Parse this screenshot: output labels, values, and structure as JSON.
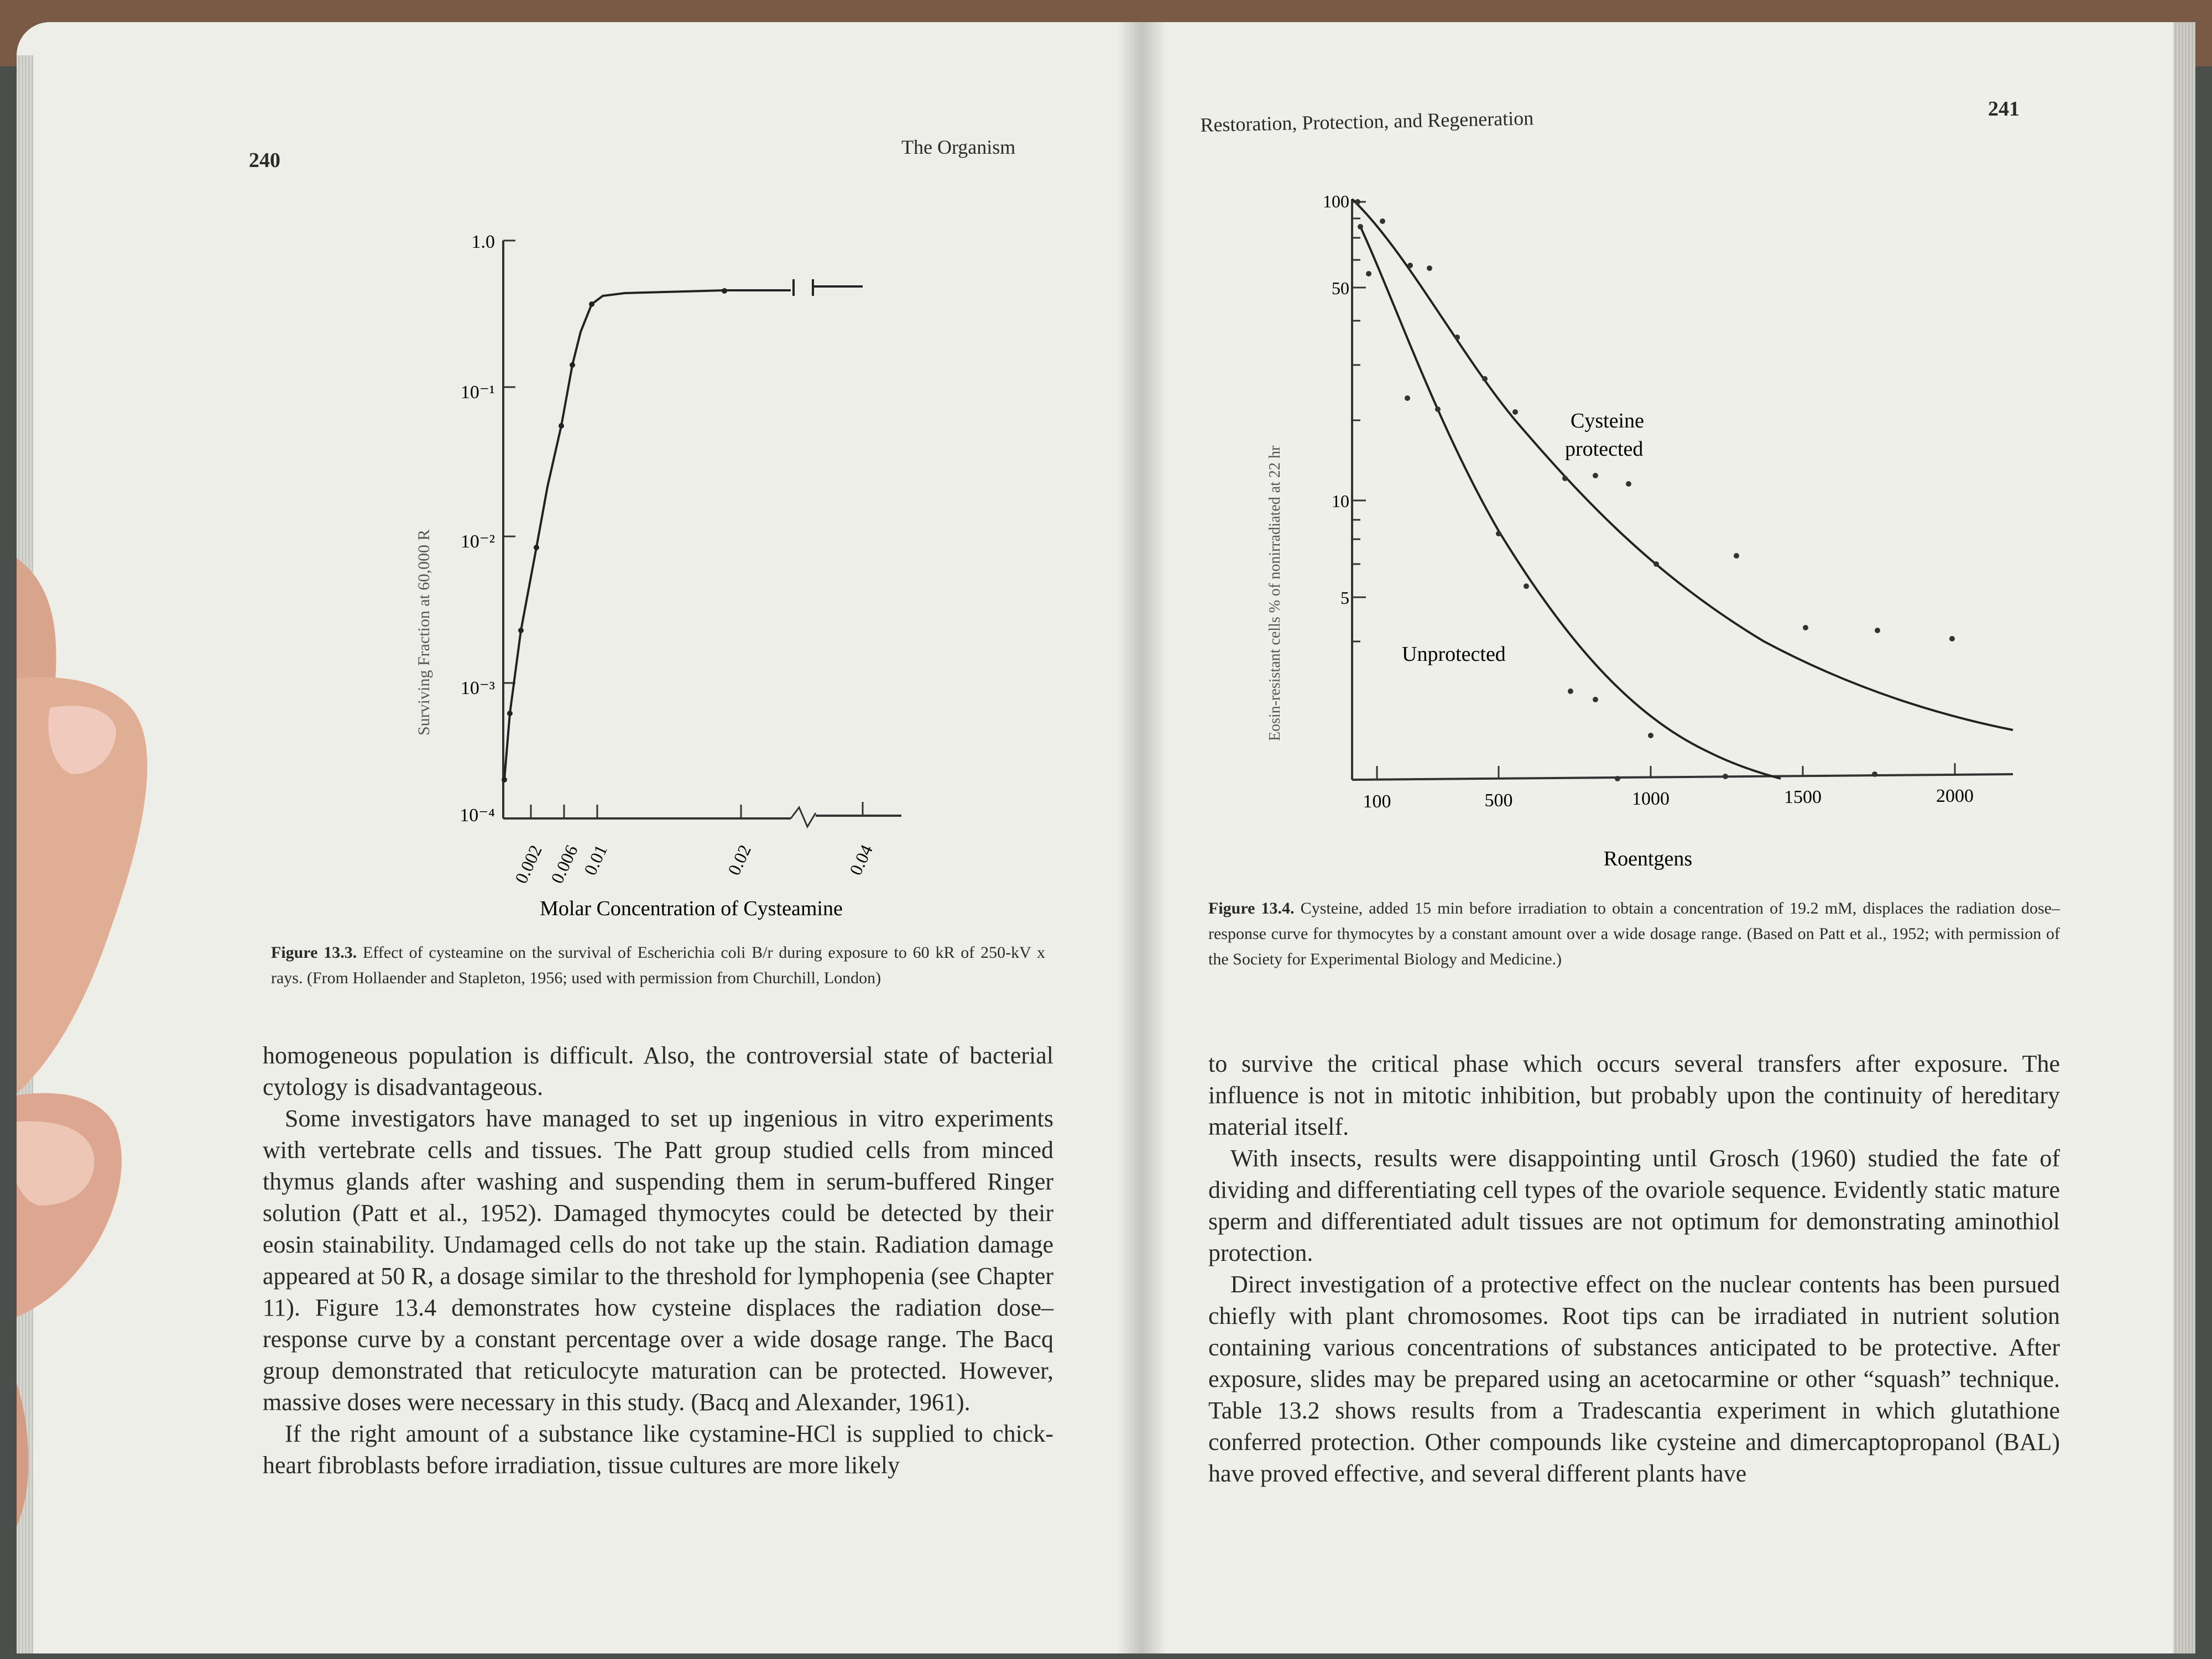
{
  "left_page": {
    "page_number": "240",
    "running_head": "The Organism",
    "figure": {
      "y_axis_label": "Surviving Fraction at 60,000 R",
      "x_axis_label": "Molar Concentration of Cysteamine",
      "y_ticks": [
        "1.0",
        "10⁻¹",
        "10⁻²",
        "10⁻³",
        "10⁻⁴"
      ],
      "x_ticks": [
        "0.002",
        "0.006",
        "0.01",
        "0.02",
        "0.04"
      ],
      "caption_label": "Figure 13.3.",
      "caption_text": " Effect of cysteamine on the survival of Escherichia coli B/r during exposure to 60 kR of 250-kV x rays. (From Hollaender and Stapleton, 1956; used with permission from Churchill, London)"
    },
    "paragraphs": [
      "homogeneous population is difficult. Also, the controversial state of bacterial cytology is disadvantageous.",
      "Some investigators have managed to set up ingenious in vitro experiments with vertebrate cells and tissues. The Patt group studied cells from minced thymus glands after washing and suspending them in serum-buffered Ringer solution (Patt et al., 1952). Damaged thymocytes could be detected by their eosin stainability. Undamaged cells do not take up the stain. Radiation damage appeared at 50 R, a dosage similar to the threshold for lymphopenia (see Chapter 11). Figure 13.4 demonstrates how cysteine displaces the radiation dose–response curve by a constant percentage over a wide dosage range. The Bacq group demonstrated that reticulocyte maturation can be protected. However, massive doses were necessary in this study. (Bacq and Alexander, 1961).",
      "If the right amount of a substance like cystamine-HCl is supplied to chick-heart fibroblasts before irradiation, tissue cultures are more likely"
    ]
  },
  "right_page": {
    "page_number": "241",
    "running_head": "Restoration, Protection, and Regeneration",
    "figure": {
      "y_axis_label": "Eosin-resistant cells % of nonirradiated at 22 hr",
      "x_axis_label": "Roentgens",
      "y_ticks": [
        "100",
        "50",
        "10",
        "5"
      ],
      "x_ticks": [
        "100",
        "500",
        "1000",
        "1500",
        "2000"
      ],
      "curve_label_protected_1": "Cysteine",
      "curve_label_protected_2": "protected",
      "curve_label_unprotected": "Unprotected",
      "caption_label": "Figure 13.4.",
      "caption_text": " Cysteine, added 15 min before irradiation to obtain a concentration of 19.2 mM, displaces the radiation dose–response curve for thymocytes by a constant amount over a wide dosage range. (Based on Patt et al., 1952; with permission of the Society for Experimental Biology and Medicine.)"
    },
    "paragraphs": [
      "to survive the critical phase which occurs several transfers after exposure. The influence is not in mitotic inhibition, but probably upon the continuity of hereditary material itself.",
      "With insects, results were disappointing until Grosch (1960) studied the fate of dividing and differentiating cell types of the ovariole sequence. Evidently static mature sperm and differentiated adult tissues are not optimum for demonstrating aminothiol protection.",
      "Direct investigation of a protective effect on the nuclear contents has been pursued chiefly with plant chromosomes. Root tips can be irradiated in nutrient solution containing various concentrations of substances anticipated to be protective. After exposure, slides may be prepared using an acetocarmine or other “squash” technique. Table 13.2 shows results from a Tradescantia experiment in which glutathione conferred protection. Other compounds like cysteine and dimercaptopropanol (BAL) have proved effective, and several different plants have"
    ]
  }
}
